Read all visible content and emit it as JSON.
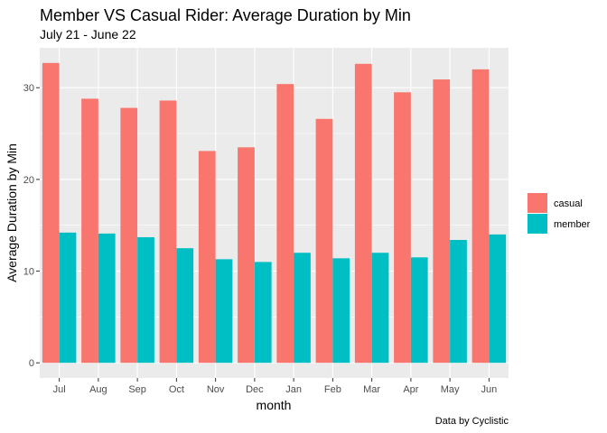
{
  "chart_data": {
    "type": "bar",
    "title": "Member VS Casual Rider: Average Duration by Min",
    "subtitle": "July 21 - June 22",
    "xlabel": "month",
    "ylabel": "Average Duration by Min",
    "caption": "Data by Cyclistic",
    "categories": [
      "Jul",
      "Aug",
      "Sep",
      "Oct",
      "Nov",
      "Dec",
      "Jan",
      "Feb",
      "Mar",
      "Apr",
      "May",
      "Jun"
    ],
    "series": [
      {
        "name": "casual",
        "color": "#F8766D",
        "values": [
          32.7,
          28.8,
          27.8,
          28.6,
          23.1,
          23.5,
          30.4,
          26.6,
          32.6,
          29.5,
          30.9,
          32.0
        ]
      },
      {
        "name": "member",
        "color": "#00BFC4",
        "values": [
          14.2,
          14.1,
          13.7,
          12.5,
          11.3,
          11.0,
          12.0,
          11.4,
          12.0,
          11.5,
          13.4,
          14.0
        ]
      }
    ],
    "ylim": [
      -1.65,
      34.35
    ],
    "yticks": [
      0,
      10,
      20,
      30
    ],
    "grid": true,
    "legend_position": "right",
    "panel_background": "#EBEBEB",
    "grid_color": "#FFFFFF"
  }
}
